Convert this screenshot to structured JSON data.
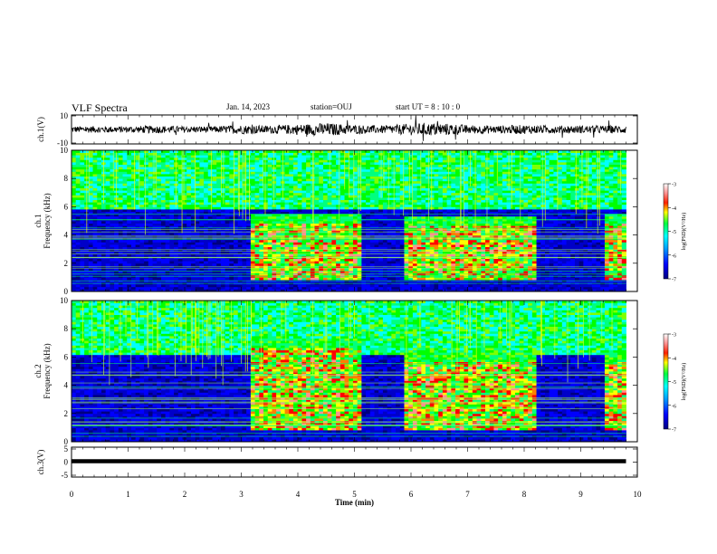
{
  "header": {
    "title": "VLF Spectra",
    "date": "Jan. 14, 2023",
    "station": "station=OUJ",
    "start": "start  UT =  8 : 10 : 0"
  },
  "chart_data": [
    {
      "type": "line",
      "panel": "ch1-waveform",
      "ylabel": "ch.1(V)",
      "ylim": [
        -10,
        10
      ],
      "yticks": [
        "10",
        "-10"
      ],
      "xlim": [
        0,
        10
      ],
      "series": [
        {
          "values_description": "",
          "x": [
            0,
            0.5,
            1,
            1.5,
            2,
            2.5,
            3,
            3.5,
            4,
            4.5,
            5,
            5.5,
            6,
            6.5,
            7,
            7.5,
            8,
            8.5,
            9,
            9.5,
            9.8
          ],
          "envelope": [
            2.5,
            2.5,
            2.5,
            3.0,
            2.5,
            2.5,
            3.5,
            3.0,
            4.0,
            5.0,
            3.5,
            3.0,
            4.5,
            5.0,
            3.5,
            3.0,
            3.5,
            3.0,
            3.0,
            3.0,
            3.0
          ]
        }
      ]
    },
    {
      "type": "heatmap",
      "panel": "ch1-spectrogram",
      "ylabel": "ch.1\nFrequency (kHz)",
      "ylim": [
        0,
        10
      ],
      "yticks": [
        "0",
        "2",
        "4",
        "6",
        "8",
        "10"
      ],
      "xlim": [
        0,
        9.8
      ],
      "colorbar": {
        "label": "log(PSD)(V²/Hz)",
        "range": [
          -7,
          -3
        ],
        "ticks": [
          "-3",
          "-4",
          "-5",
          "-6",
          "-7"
        ]
      },
      "bursts": [
        [
          3.15,
          5.15,
          4.8
        ],
        [
          5.85,
          8.2,
          4.6
        ],
        [
          9.45,
          9.8,
          4.8
        ]
      ],
      "background_cutoff_khz": 5.8
    },
    {
      "type": "heatmap",
      "panel": "ch2-spectrogram",
      "ylabel": "ch.2\nFrequency (kHz)",
      "ylim": [
        0,
        10
      ],
      "yticks": [
        "0",
        "2",
        "4",
        "6",
        "8",
        "10"
      ],
      "xlim": [
        0,
        9.8
      ],
      "colorbar": {
        "label": "log(PSD)(V²/Hz)",
        "range": [
          -7,
          -3
        ],
        "ticks": [
          "-3",
          "-4",
          "-5",
          "-6",
          "-7"
        ]
      },
      "bursts": [
        [
          3.15,
          5.15,
          6.6
        ],
        [
          5.85,
          8.2,
          5.6
        ],
        [
          9.45,
          9.8,
          5.6
        ]
      ],
      "background_cutoff_khz": 6.2
    },
    {
      "type": "line",
      "panel": "ch3-waveform",
      "ylabel": "ch.3(V)",
      "ylim": [
        -5,
        5
      ],
      "yticks": [
        "5",
        "0",
        "-5"
      ],
      "xlim": [
        0,
        10
      ],
      "series": [
        {
          "x": [
            0,
            9.8
          ],
          "y": [
            0,
            0
          ]
        }
      ]
    }
  ],
  "xaxis": {
    "label": "Time (min)",
    "ticks": [
      "0",
      "1",
      "2",
      "3",
      "4",
      "5",
      "6",
      "7",
      "8",
      "9",
      "10"
    ]
  }
}
